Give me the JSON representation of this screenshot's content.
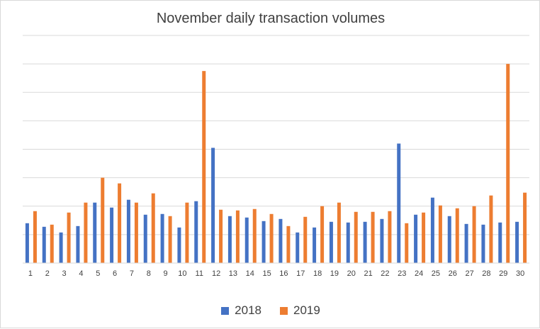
{
  "chart_data": {
    "type": "bar",
    "title": "November daily transaction volumes",
    "xlabel": "",
    "ylabel": "",
    "categories": [
      "1",
      "2",
      "3",
      "4",
      "5",
      "6",
      "7",
      "8",
      "9",
      "10",
      "11",
      "12",
      "13",
      "14",
      "15",
      "16",
      "17",
      "18",
      "19",
      "20",
      "21",
      "22",
      "23",
      "24",
      "25",
      "26",
      "27",
      "28",
      "29",
      "30"
    ],
    "series": [
      {
        "name": "2018",
        "color": "#4472C4",
        "values": [
          56,
          51,
          43,
          52,
          85,
          78,
          89,
          68,
          69,
          50,
          87,
          162,
          66,
          64,
          59,
          62,
          43,
          50,
          58,
          57,
          58,
          62,
          168,
          68,
          92,
          66,
          55,
          54,
          57,
          58
        ]
      },
      {
        "name": "2019",
        "color": "#ED7D31",
        "values": [
          73,
          54,
          71,
          85,
          120,
          112,
          85,
          98,
          66,
          85,
          270,
          75,
          74,
          76,
          69,
          52,
          65,
          80,
          85,
          72,
          72,
          73,
          56,
          71,
          81,
          77,
          80,
          95,
          280,
          99
        ]
      }
    ],
    "ylim": [
      0,
      320
    ],
    "ygrid_step": 40,
    "grid": true,
    "legend_position": "bottom",
    "y_tick_labels_shown": false
  },
  "legend": {
    "items": [
      {
        "label": "2018",
        "color": "#4472C4"
      },
      {
        "label": "2019",
        "color": "#ED7D31"
      }
    ]
  }
}
